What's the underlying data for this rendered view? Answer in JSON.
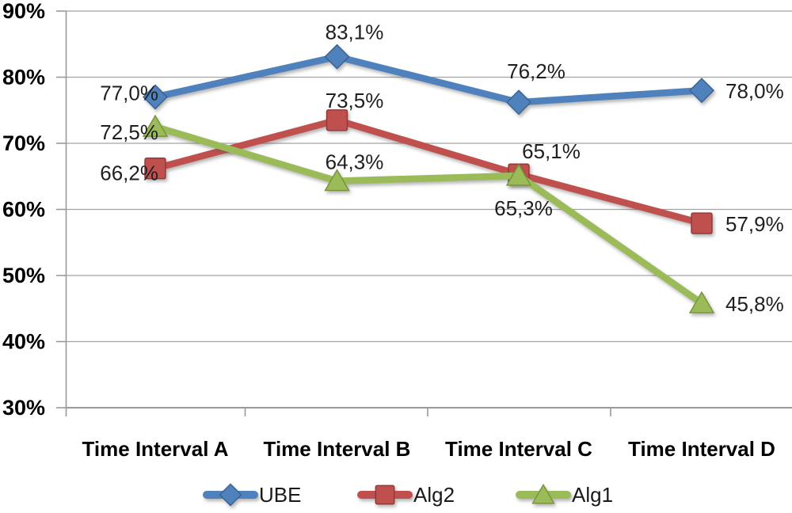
{
  "chart_data": {
    "type": "line",
    "title": "",
    "xlabel": "",
    "ylabel": "",
    "categories": [
      "Time Interval A",
      "Time Interval B",
      "Time Interval C",
      "Time Interval D"
    ],
    "series": [
      {
        "name": "UBE",
        "color": "#4F81BD",
        "edge_color": "#38618f",
        "marker": "diamond",
        "values": [
          77.0,
          83.1,
          76.2,
          78.0
        ],
        "labels": [
          {
            "text": "77,0%",
            "pos": "left",
            "dx": 0,
            "dy": 0
          },
          {
            "text": "83,1%",
            "pos": "above",
            "dx": 0,
            "dy": 0
          },
          {
            "text": "76,2%",
            "pos": "above",
            "dx": 0,
            "dy": -8
          },
          {
            "text": "78,0%",
            "pos": "right",
            "dx": 0,
            "dy": 0
          }
        ]
      },
      {
        "name": "Alg2",
        "color": "#C0504D",
        "edge_color": "#8e3836",
        "marker": "square",
        "values": [
          66.2,
          73.5,
          65.3,
          57.9
        ],
        "labels": [
          {
            "text": "66,2%",
            "pos": "left",
            "dx": 0,
            "dy": 11
          },
          {
            "text": "73,5%",
            "pos": "above",
            "dx": 0,
            "dy": 6
          },
          {
            "text": "65,3%",
            "pos": "below",
            "dx": 0,
            "dy": 0
          },
          {
            "text": "57,9%",
            "pos": "right",
            "dx": 0,
            "dy": 0
          }
        ]
      },
      {
        "name": "Alg1",
        "color": "#9BBB59",
        "edge_color": "#76933c",
        "marker": "triangle",
        "values": [
          72.5,
          64.3,
          65.1,
          45.8
        ],
        "labels": [
          {
            "text": "72,5%",
            "pos": "left",
            "dx": 0,
            "dy": 12
          },
          {
            "text": "64,3%",
            "pos": "above",
            "dx": 0,
            "dy": 7
          },
          {
            "text": "65,1%",
            "pos": "above",
            "dx": 19,
            "dy": 0
          },
          {
            "text": "45,8%",
            "pos": "right",
            "dx": 0,
            "dy": 0
          }
        ]
      }
    ],
    "y_axis": {
      "min": 30,
      "max": 90,
      "step": 10,
      "tick_labels": [
        "90%",
        "80%",
        "70%",
        "60%",
        "50%",
        "40%",
        "30%"
      ],
      "format": "percent-comma-decimal"
    },
    "grid": true,
    "legend": {
      "position": "bottom",
      "entries": [
        "UBE",
        "Alg2",
        "Alg1"
      ]
    }
  }
}
